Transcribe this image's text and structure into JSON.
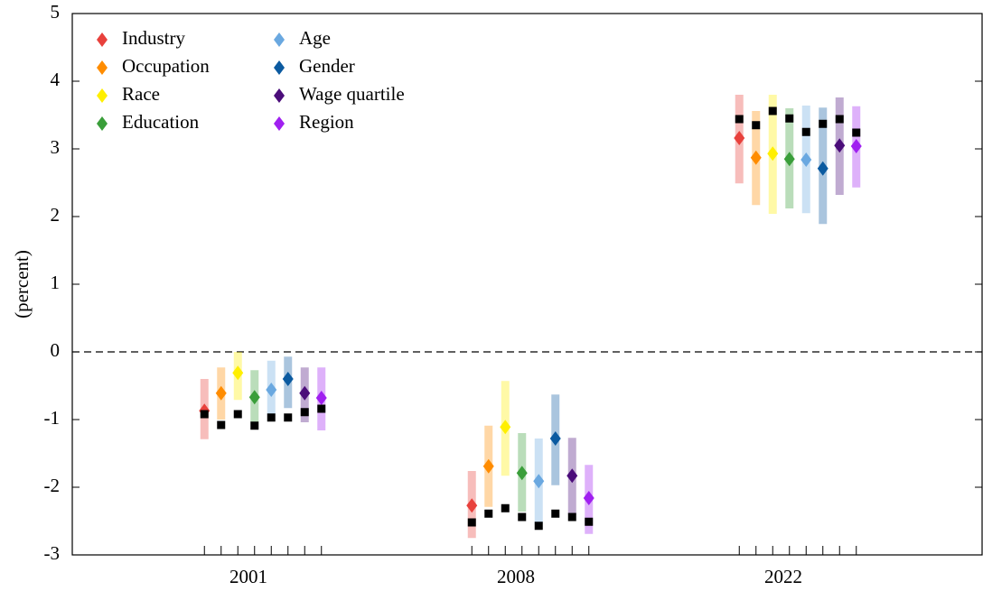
{
  "chart_data": {
    "type": "errorbar",
    "y_label": "(percent)",
    "categories": [
      "2001",
      "2008",
      "2022"
    ],
    "ylim": [
      -3,
      5
    ],
    "yticks": [
      -3,
      -2,
      -1,
      0,
      1,
      2,
      3,
      4,
      5
    ],
    "reference_line": 0,
    "legend": "upper left",
    "series": [
      {
        "name": "Industry",
        "color": "#e8413c",
        "values": [
          -0.87,
          -2.27,
          3.16
        ],
        "low": [
          -1.29,
          -2.75,
          2.49
        ],
        "high": [
          -0.4,
          -1.76,
          3.8
        ],
        "squares": [
          -0.92,
          -2.52,
          3.44
        ]
      },
      {
        "name": "Occupation",
        "color": "#ff8c00",
        "values": [
          -0.61,
          -1.69,
          2.87
        ],
        "low": [
          -1.0,
          -2.29,
          2.17
        ],
        "high": [
          -0.23,
          -1.09,
          3.56
        ],
        "squares": [
          -1.08,
          -2.39,
          3.35
        ]
      },
      {
        "name": "Race",
        "color": "#ffef00",
        "values": [
          -0.31,
          -1.11,
          2.93
        ],
        "low": [
          -0.71,
          -1.83,
          2.04
        ],
        "high": [
          0,
          -0.43,
          3.8
        ],
        "squares": [
          -0.92,
          -2.31,
          3.56
        ]
      },
      {
        "name": "Education",
        "color": "#3a9e3a",
        "values": [
          -0.67,
          -1.79,
          2.85
        ],
        "low": [
          -1.04,
          -2.36,
          2.12
        ],
        "high": [
          -0.27,
          -1.2,
          3.6
        ],
        "squares": [
          -1.09,
          -2.44,
          3.45
        ]
      },
      {
        "name": "Age",
        "color": "#6aa8e0",
        "values": [
          -0.56,
          -1.91,
          2.84
        ],
        "low": [
          -0.93,
          -2.53,
          2.05
        ],
        "high": [
          -0.13,
          -1.28,
          3.64
        ],
        "squares": [
          -0.97,
          -2.57,
          3.25
        ]
      },
      {
        "name": "Gender",
        "color": "#0b5aa0",
        "values": [
          -0.4,
          -1.28,
          2.71
        ],
        "low": [
          -0.83,
          -1.97,
          1.89
        ],
        "high": [
          -0.07,
          -0.63,
          3.61
        ],
        "squares": [
          -0.97,
          -2.39,
          3.37
        ]
      },
      {
        "name": "Wage quartile",
        "color": "#4b0d7a",
        "values": [
          -0.61,
          -1.83,
          3.05
        ],
        "low": [
          -1.04,
          -2.4,
          2.32
        ],
        "high": [
          -0.23,
          -1.27,
          3.76
        ],
        "squares": [
          -0.89,
          -2.44,
          3.44
        ]
      },
      {
        "name": "Region",
        "color": "#a020f0",
        "values": [
          -0.68,
          -2.16,
          3.04
        ],
        "low": [
          -1.16,
          -2.69,
          2.43
        ],
        "high": [
          -0.23,
          -1.67,
          3.63
        ],
        "squares": [
          -0.84,
          -2.51,
          3.24
        ]
      }
    ]
  }
}
